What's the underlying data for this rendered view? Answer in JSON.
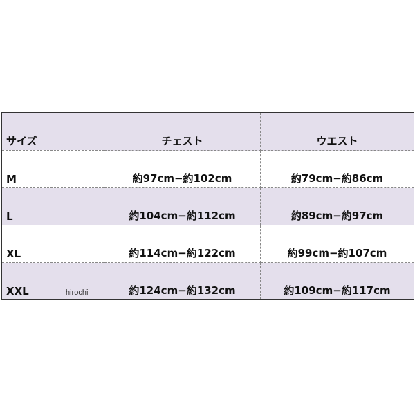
{
  "colors": {
    "shaded_row": "#e4dfec",
    "white_row": "#ffffff",
    "border": "#333333"
  },
  "table": {
    "headers": [
      "サイズ",
      "チェスト",
      "ウエスト"
    ],
    "rows": [
      {
        "size": "M",
        "chest": "約97cm−約102cm",
        "waist": "約79cm−約86cm"
      },
      {
        "size": "L",
        "chest": "約104cm−約112cm",
        "waist": "約89cm−約97cm"
      },
      {
        "size": "XL",
        "chest": "約114cm−約122cm",
        "waist": "約99cm−約107cm"
      },
      {
        "size": "XXL",
        "chest": "約124cm−約132cm",
        "waist": "約109cm−約117cm"
      }
    ]
  },
  "watermark": "hirochi"
}
